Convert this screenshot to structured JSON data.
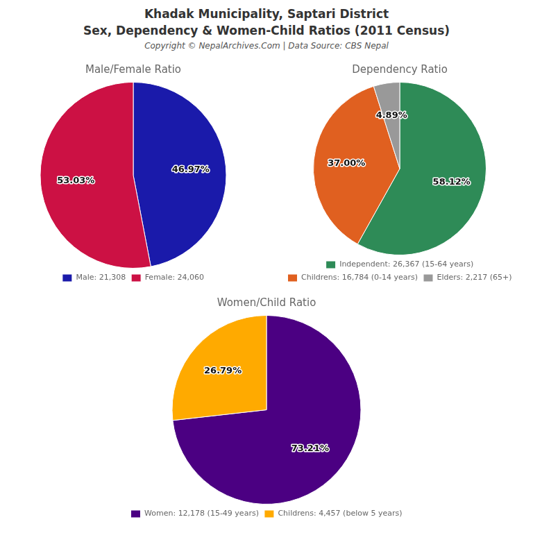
{
  "title": [
    "Khadak Municipality, Saptari District",
    "Sex, Dependency & Women-Child Ratios (2011 Census)"
  ],
  "subtitle": "Copyright © NepalArchives.Com | Data Source: CBS Nepal",
  "chart_data": [
    {
      "type": "pie",
      "title": "Male/Female Ratio",
      "categories": [
        "Male: 21,308",
        "Female: 24,060"
      ],
      "values": [
        46.97,
        53.03
      ],
      "value_labels": [
        "46.97%",
        "53.03%"
      ],
      "colors": [
        "#1a1aaa",
        "#cc1144"
      ],
      "data_labels": true,
      "legend": "bottom"
    },
    {
      "type": "pie",
      "title": "Dependency Ratio",
      "categories": [
        "Independent: 26,367 (15-64 years)",
        "Childrens: 16,784 (0-14 years)",
        "Elders: 2,217 (65+)"
      ],
      "values": [
        58.12,
        37.0,
        4.89
      ],
      "value_labels": [
        "58.12%",
        "37.00%",
        "4.89%"
      ],
      "colors": [
        "#2e8b57",
        "#e06020",
        "#999999"
      ],
      "data_labels": true,
      "legend": "bottom"
    },
    {
      "type": "pie",
      "title": "Women/Child Ratio",
      "categories": [
        "Women: 12,178 (15-49 years)",
        "Childrens: 4,457 (below 5 years)"
      ],
      "values": [
        73.21,
        26.79
      ],
      "value_labels": [
        "73.21%",
        "26.79%"
      ],
      "colors": [
        "#4b0082",
        "#ffaa00"
      ],
      "data_labels": true,
      "legend": "bottom"
    }
  ]
}
